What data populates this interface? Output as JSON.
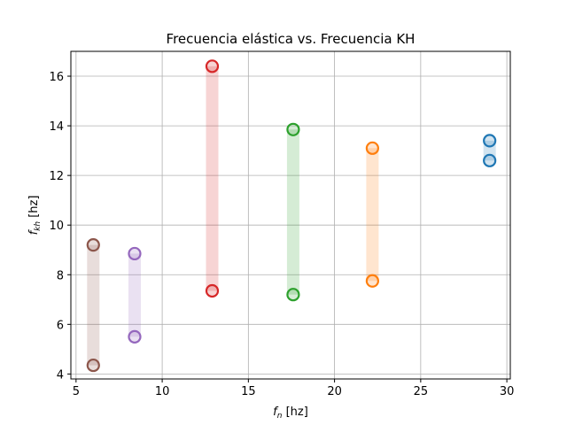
{
  "chart_data": {
    "type": "scatter",
    "title": "Frecuencia elástica vs. Frecuencia KH",
    "xlabel_main": "f",
    "xlabel_sub": "n",
    "xlabel_unit": " [hz]",
    "ylabel_main": "f",
    "ylabel_sub": "kh",
    "ylabel_unit": " [hz]",
    "xlim": [
      4.7,
      30.2
    ],
    "ylim": [
      3.8,
      17.0
    ],
    "xticks": [
      5,
      10,
      15,
      20,
      25,
      30
    ],
    "yticks": [
      4,
      6,
      8,
      10,
      12,
      14,
      16
    ],
    "grid": true,
    "series": [
      {
        "name": "C0",
        "color": "#1f77b4",
        "x": 29.0,
        "low": 12.6,
        "high": 13.4
      },
      {
        "name": "C1",
        "color": "#ff7f0e",
        "x": 22.2,
        "low": 7.75,
        "high": 13.1
      },
      {
        "name": "C2",
        "color": "#2ca02c",
        "x": 17.6,
        "low": 7.2,
        "high": 13.85
      },
      {
        "name": "C3",
        "color": "#d62728",
        "x": 12.9,
        "low": 7.35,
        "high": 16.4
      },
      {
        "name": "C4",
        "color": "#9467bd",
        "x": 8.4,
        "low": 5.5,
        "high": 8.85
      },
      {
        "name": "C5",
        "color": "#8c564b",
        "x": 6.0,
        "low": 4.35,
        "high": 9.2
      }
    ]
  }
}
